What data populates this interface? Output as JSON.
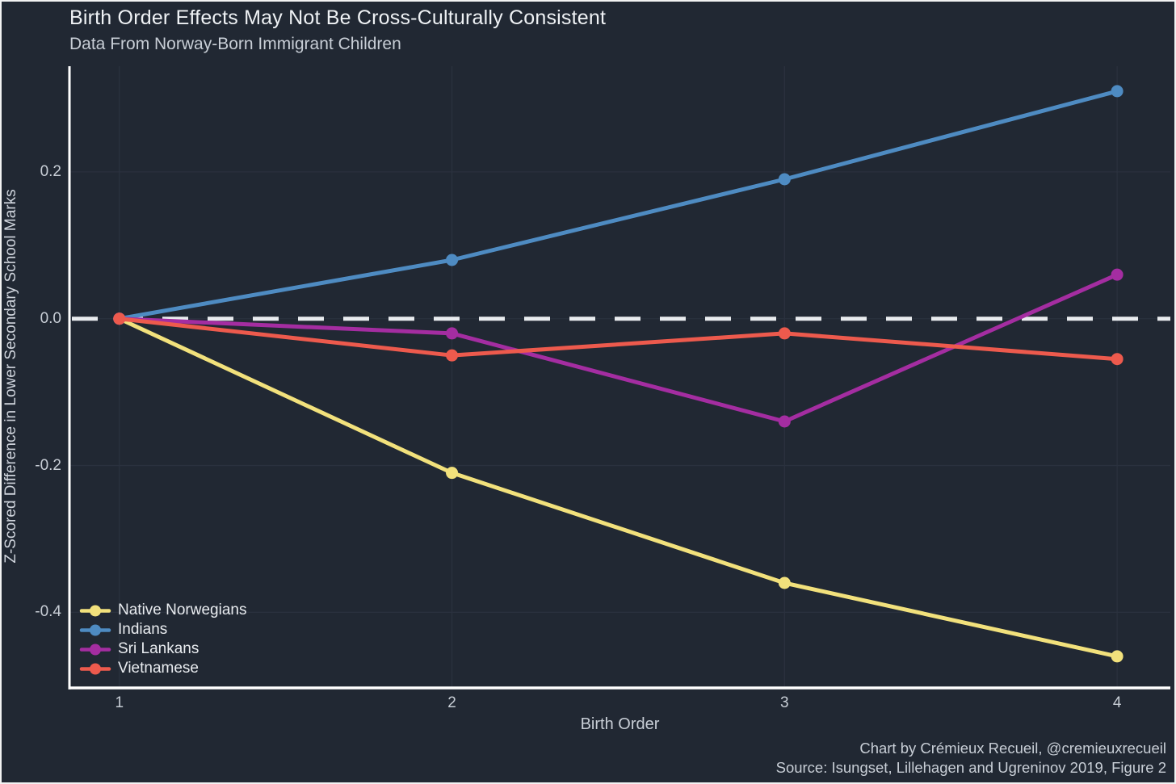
{
  "chart_data": {
    "type": "line",
    "title": "Birth Order Effects May Not Be Cross-Culturally Consistent",
    "subtitle": "Data From Norway-Born Immigrant Children",
    "xlabel": "Birth Order",
    "ylabel": "Z-Scored Difference in Lower Secondary School Marks",
    "caption": [
      "Chart by Crémieux Recueil, @cremieuxrecueil",
      "Source: Isungset, Lillehagen and Ugreninov 2019, Figure 2"
    ],
    "x": [
      1,
      2,
      3,
      4
    ],
    "x_tick_labels": [
      "1",
      "2",
      "3",
      "4"
    ],
    "y_ticks": [
      0.2,
      0.0,
      -0.2,
      -0.4
    ],
    "y_tick_labels": [
      "0.2",
      "0.0",
      "-0.2",
      "-0.4"
    ],
    "xlim": [
      0.85,
      4.16
    ],
    "ylim": [
      -0.503,
      0.344
    ],
    "grid": true,
    "zero_line_y": 0.0,
    "legend_position": "bottom-left",
    "series": [
      {
        "name": "Native Norwegians",
        "color": "#F2E17C",
        "values": [
          0.0,
          -0.21,
          -0.36,
          -0.46
        ]
      },
      {
        "name": "Indians",
        "color": "#4E8BC2",
        "values": [
          0.0,
          0.08,
          0.19,
          0.31
        ]
      },
      {
        "name": "Sri Lankans",
        "color": "#A42DA1",
        "values": [
          0.0,
          -0.02,
          -0.14,
          0.06
        ]
      },
      {
        "name": "Vietnamese",
        "color": "#ED5A4D",
        "values": [
          0.0,
          -0.05,
          -0.02,
          -0.055
        ]
      }
    ],
    "colors": {
      "background": "#212833",
      "grid": "#2A313E",
      "axis": "#FFFFFF",
      "zero_line": "#E9ECEF",
      "title_text": "#EFF2F5",
      "muted_text": "#C8CED6",
      "legend_text": "#E9ECF0"
    }
  }
}
